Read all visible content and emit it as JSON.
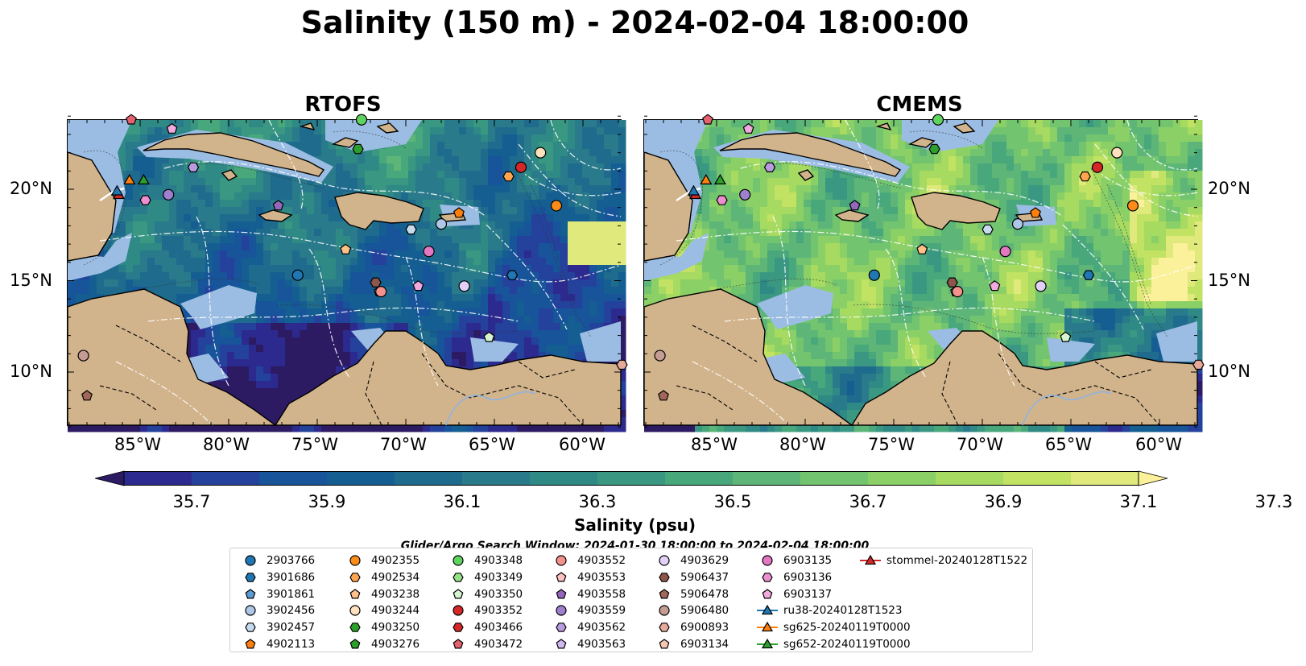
{
  "title": "Salinity (150 m) - 2024-02-04 18:00:00",
  "panels": [
    {
      "title": "RTOFS",
      "palette": "rtofs"
    },
    {
      "title": "CMEMS",
      "palette": "cmems"
    }
  ],
  "lat_ticks": [
    "20°N",
    "15°N",
    "10°N"
  ],
  "lon_ticks": [
    "85°W",
    "80°W",
    "75°W",
    "70°W",
    "65°W",
    "60°W"
  ],
  "colorbar": {
    "label": "Salinity (psu)",
    "ticks": [
      "35.7",
      "35.9",
      "36.1",
      "36.3",
      "36.5",
      "36.7",
      "36.9",
      "37.1",
      "37.3"
    ],
    "colors": [
      "#2c1a63",
      "#2d2a8f",
      "#24419c",
      "#17549a",
      "#145e92",
      "#1f6b8d",
      "#297a8a",
      "#2f8985",
      "#3a9882",
      "#49a77c",
      "#5db677",
      "#73c46f",
      "#8bd066",
      "#a6da60",
      "#c2e264",
      "#dfe97c",
      "#fbf19a"
    ]
  },
  "search_window": "Glider/Argo Search Window: 2024-01-30 18:00:00 to 2024-02-04 18:00:00",
  "colors": {
    "land": "#d2b48c",
    "shelf": "#9cbde3",
    "deep": "#24185e"
  },
  "legend": [
    {
      "label": "2903766",
      "marker": "circle",
      "color": "#1f77b4"
    },
    {
      "label": "3901686",
      "marker": "hexagon",
      "color": "#1f77b4"
    },
    {
      "label": "3901861",
      "marker": "pentagon",
      "color": "#5a9bd4"
    },
    {
      "label": "3902456",
      "marker": "circle",
      "color": "#aec7e8"
    },
    {
      "label": "3902457",
      "marker": "hexagon",
      "color": "#c6dbef"
    },
    {
      "label": "4902113",
      "marker": "pentagon",
      "color": "#ff7f0e"
    },
    {
      "label": "4902355",
      "marker": "circle",
      "color": "#ff8c1a"
    },
    {
      "label": "4902534",
      "marker": "hexagon",
      "color": "#ffa54f"
    },
    {
      "label": "4903238",
      "marker": "pentagon",
      "color": "#ffc08a"
    },
    {
      "label": "4903244",
      "marker": "circle",
      "color": "#ffe0bf"
    },
    {
      "label": "4903250",
      "marker": "hexagon",
      "color": "#2ca02c"
    },
    {
      "label": "4903276",
      "marker": "pentagon",
      "color": "#2ca02c"
    },
    {
      "label": "4903348",
      "marker": "circle",
      "color": "#5fd35f"
    },
    {
      "label": "4903349",
      "marker": "hexagon",
      "color": "#98df8a"
    },
    {
      "label": "4903350",
      "marker": "pentagon",
      "color": "#d5f5d0"
    },
    {
      "label": "4903352",
      "marker": "circle",
      "color": "#d62728"
    },
    {
      "label": "4903466",
      "marker": "hexagon",
      "color": "#d62728"
    },
    {
      "label": "4903472",
      "marker": "pentagon",
      "color": "#e4616e"
    },
    {
      "label": "4903552",
      "marker": "circle",
      "color": "#f4918d"
    },
    {
      "label": "4903553",
      "marker": "pentagon",
      "color": "#fbc2bf"
    },
    {
      "label": "4903558",
      "marker": "pentagon",
      "color": "#9467bd"
    },
    {
      "label": "4903559",
      "marker": "circle",
      "color": "#9e7fd0"
    },
    {
      "label": "4903562",
      "marker": "hexagon",
      "color": "#b99be0"
    },
    {
      "label": "4903563",
      "marker": "pentagon",
      "color": "#d2b8f0"
    },
    {
      "label": "4903629",
      "marker": "circle",
      "color": "#e2d0f7"
    },
    {
      "label": "5906437",
      "marker": "hexagon",
      "color": "#8c564b"
    },
    {
      "label": "5906478",
      "marker": "pentagon",
      "color": "#a0675a"
    },
    {
      "label": "5906480",
      "marker": "circle",
      "color": "#c49c94"
    },
    {
      "label": "6900893",
      "marker": "hexagon",
      "color": "#e7a99a"
    },
    {
      "label": "6903134",
      "marker": "pentagon",
      "color": "#f7c7b4"
    },
    {
      "label": "6903135",
      "marker": "circle",
      "color": "#e377c2"
    },
    {
      "label": "6903136",
      "marker": "hexagon",
      "color": "#ec8fd1"
    },
    {
      "label": "6903137",
      "marker": "pentagon",
      "color": "#f2a9dd"
    },
    {
      "label": "ru38-20240128T1523",
      "marker": "triangle",
      "color": "#1f77b4"
    },
    {
      "label": "sg625-20240119T0000",
      "marker": "triangle",
      "color": "#ff7f0e"
    },
    {
      "label": "sg652-20240119T0000",
      "marker": "triangle",
      "color": "#2ca02c"
    },
    {
      "label": "stommel-20240128T1522",
      "marker": "triangle",
      "color": "#d62728"
    }
  ]
}
